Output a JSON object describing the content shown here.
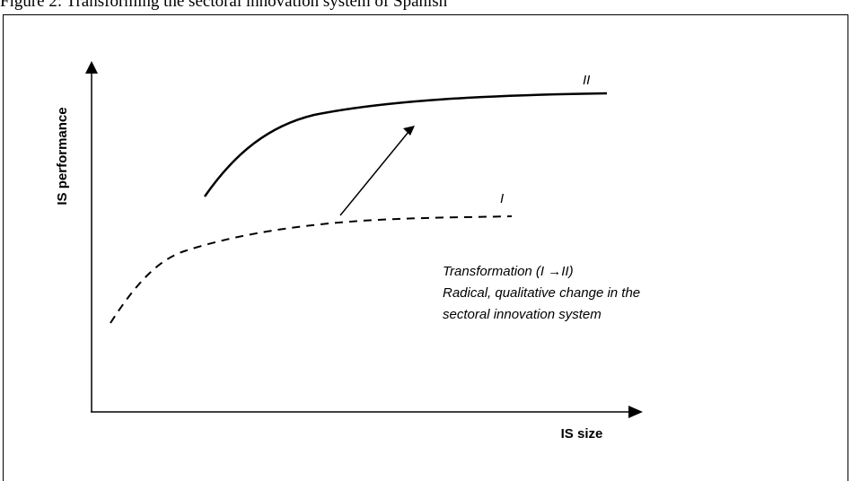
{
  "header_text": "Figure 2: Transforming the sectoral innovation system of Spanish",
  "diagram": {
    "y_axis_label": "IS performance",
    "x_axis_label": "IS size",
    "curve_labels": {
      "I": "I",
      "II": "II"
    },
    "annotation": {
      "line1": "Transformation (I →II)",
      "line2": "Radical, qualitative change in the",
      "line3": "sectoral innovation system"
    }
  }
}
